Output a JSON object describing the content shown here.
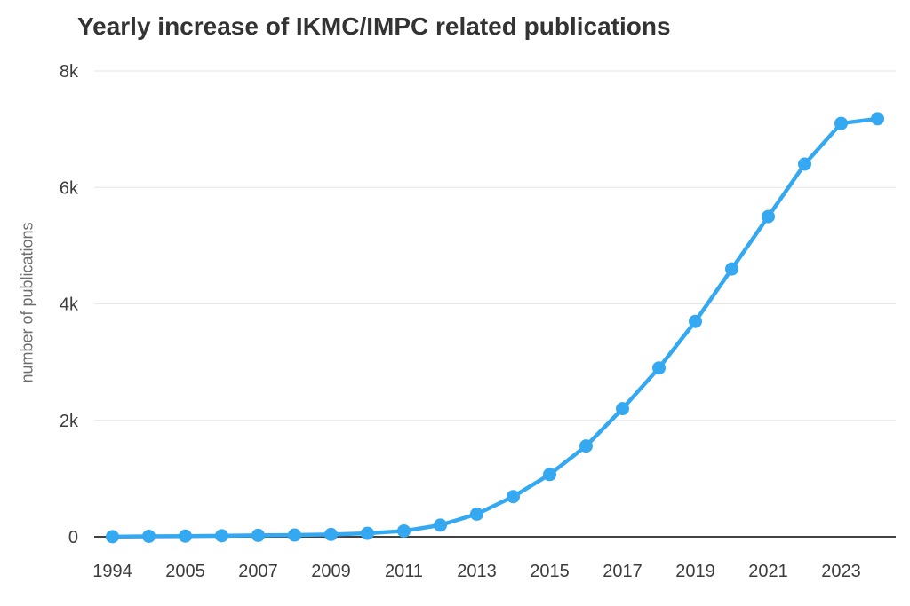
{
  "chart_data": {
    "type": "line",
    "title": "Yearly increase of IKMC/IMPC related publications",
    "xlabel": "",
    "ylabel": "number of publications",
    "categories": [
      "1994",
      "2004",
      "2005",
      "2006",
      "2007",
      "2008",
      "2009",
      "2010",
      "2011",
      "2012",
      "2013",
      "2014",
      "2015",
      "2016",
      "2017",
      "2018",
      "2019",
      "2020",
      "2021",
      "2022",
      "2023",
      "2024"
    ],
    "values": [
      2,
      8,
      12,
      18,
      24,
      30,
      40,
      60,
      100,
      200,
      390,
      690,
      1070,
      1560,
      2200,
      2900,
      3700,
      4600,
      5500,
      6400,
      7100,
      7180
    ],
    "ylim": [
      0,
      8000
    ],
    "y_ticks": [
      {
        "value": 8000,
        "label": "8k"
      },
      {
        "value": 6000,
        "label": "6k"
      },
      {
        "value": 4000,
        "label": "4k"
      },
      {
        "value": 2000,
        "label": "2k"
      },
      {
        "value": 0,
        "label": "0"
      }
    ],
    "x_tick_indices": [
      0,
      2,
      4,
      6,
      8,
      10,
      12,
      14,
      16,
      18,
      20
    ],
    "grid": true,
    "legend": false,
    "colors": {
      "line": "#35a8f2",
      "marker": "#35a8f2",
      "grid": "#e6e6e6",
      "axis": "#424242",
      "title_text": "#333333",
      "tick_text": "#3d3d3d",
      "axis_title_text": "#6e6e6e"
    }
  }
}
